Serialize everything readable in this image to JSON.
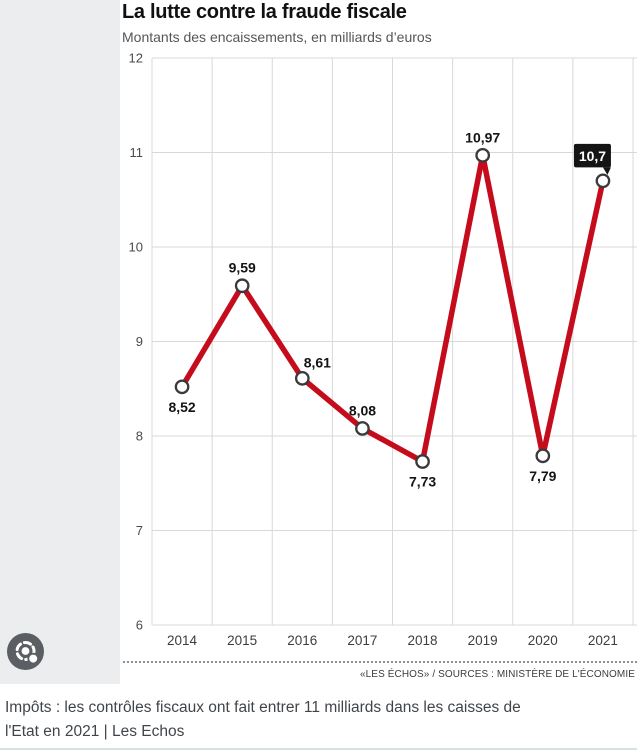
{
  "header": {
    "title": "La lutte contre la fraude fiscale",
    "subtitle": "Montants des encaissements, en milliards d’euros"
  },
  "chart_data": {
    "type": "line",
    "title": "La lutte contre la fraude fiscale",
    "subtitle": "Montants des encaissements, en milliards d’euros",
    "categories": [
      "2014",
      "2015",
      "2016",
      "2017",
      "2018",
      "2019",
      "2020",
      "2021"
    ],
    "series": [
      {
        "name": "Montants des encaissements, en milliards d’euros",
        "values": [
          8.52,
          9.59,
          8.61,
          8.08,
          7.73,
          10.97,
          7.79,
          10.7
        ],
        "value_labels": [
          "8,52",
          "9,59",
          "8,61",
          "8,08",
          "7,73",
          "10,97",
          "7,79",
          "10,7"
        ],
        "label_positions": [
          "below",
          "above",
          "above-right",
          "above",
          "below",
          "above",
          "below",
          "badge"
        ]
      }
    ],
    "xlabel": "",
    "ylabel": "",
    "ylim": [
      6,
      12
    ],
    "yticks": [
      6,
      7,
      8,
      9,
      10,
      11,
      12
    ],
    "grid": true,
    "legend": "none",
    "line_color": "#c50c1d",
    "marker_style": "open-circle",
    "highlight": {
      "index": 7,
      "style": "black-badge",
      "label": "10,7"
    },
    "source": "«LES ÉCHOS» / SOURCES : MINISTÈRE DE L'ÉCONOMIE"
  },
  "footer": {
    "source_credit": "«LES ÉCHOS» / SOURCES : MINISTÈRE DE L'ÉCONOMIE"
  },
  "caption": {
    "line1": "Impôts : les contrôles fiscaux ont fait entrer 11 milliards dans les caisses de",
    "line2": "l'Etat en 2021 | Les Echos"
  },
  "icons": {
    "lens_button": "google-lens-icon"
  },
  "colors": {
    "line": "#c50c1d",
    "badge_bg": "#141414",
    "badge_text": "#ffffff",
    "grid": "#d8d8d8",
    "left_panel": "#ecedef",
    "marker_stroke": "#3a3a3a",
    "marker_fill": "#ffffff"
  }
}
